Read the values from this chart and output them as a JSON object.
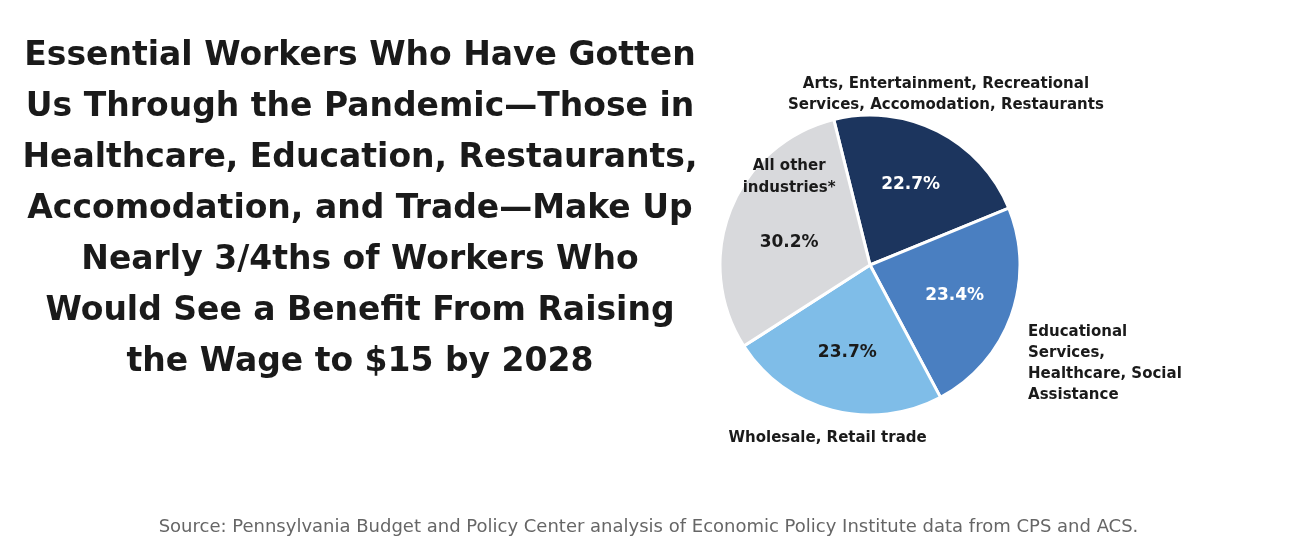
{
  "chart_data": {
    "type": "pie",
    "title": "Essential Workers Who Have Gotten Us Through the Pandemic—Those in Healthcare, Education, Restaurants, Accomodation, and Trade—Make Up Nearly 3/4ths of Workers Who Would See a Benefit From Raising the Wage to $15 by 2028",
    "categories": [
      "Arts, Entertainment, Recreational Services, Accomodation, Restaurants",
      "Educational Services, Healthcare, Social Assistance",
      "Wholesale, Retail trade",
      "All other industries*"
    ],
    "values": [
      22.7,
      23.4,
      23.7,
      30.2
    ],
    "value_labels": [
      "22.7%",
      "23.4%",
      "23.7%",
      "30.2%"
    ],
    "colors": [
      "#1c355e",
      "#4a7fc1",
      "#7fbde8",
      "#d8d9dc"
    ],
    "legend": false,
    "annotations": [
      "Source: Pennsylvania Budget and Policy Center analysis of Economic Policy Institute data from CPS and ACS."
    ]
  }
}
